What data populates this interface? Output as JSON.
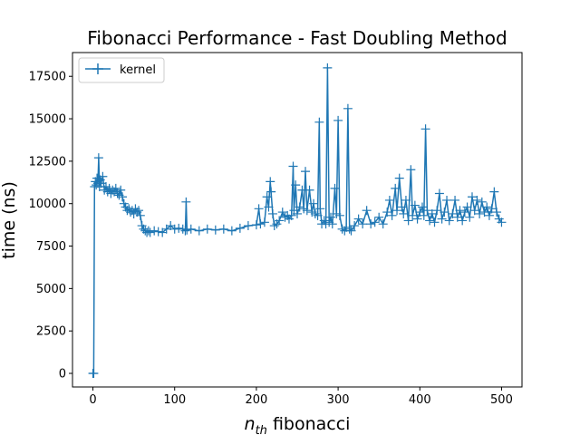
{
  "chart_data": {
    "type": "line",
    "title": "Fibonacci Performance - Fast Doubling Method",
    "xlabel_main": "n",
    "xlabel_sub": "th",
    "xlabel_rest": " fibonacci",
    "ylabel": "time (ns)",
    "xlim": [
      -25,
      525
    ],
    "ylim": [
      -800,
      18900
    ],
    "xticks": [
      0,
      100,
      200,
      300,
      400,
      500
    ],
    "yticks": [
      0,
      2500,
      5000,
      7500,
      10000,
      12500,
      15000,
      17500
    ],
    "legend_position": "top-left",
    "grid": false,
    "series": [
      {
        "name": "kernel",
        "color": "#1f77b4",
        "marker": "plus",
        "points": [
          [
            0,
            0
          ],
          [
            1,
            0
          ],
          [
            2,
            11000
          ],
          [
            3,
            11300
          ],
          [
            4,
            11100
          ],
          [
            5,
            11500
          ],
          [
            6,
            11200
          ],
          [
            7,
            12700
          ],
          [
            8,
            11000
          ],
          [
            9,
            11400
          ],
          [
            10,
            11200
          ],
          [
            12,
            11600
          ],
          [
            14,
            10800
          ],
          [
            16,
            11000
          ],
          [
            18,
            10700
          ],
          [
            20,
            10900
          ],
          [
            22,
            10600
          ],
          [
            24,
            10800
          ],
          [
            26,
            10700
          ],
          [
            28,
            10900
          ],
          [
            30,
            10600
          ],
          [
            32,
            10500
          ],
          [
            34,
            10800
          ],
          [
            36,
            10400
          ],
          [
            38,
            10000
          ],
          [
            40,
            9800
          ],
          [
            42,
            9600
          ],
          [
            44,
            9700
          ],
          [
            46,
            9500
          ],
          [
            48,
            9600
          ],
          [
            50,
            9400
          ],
          [
            52,
            9700
          ],
          [
            54,
            9500
          ],
          [
            56,
            9600
          ],
          [
            58,
            9300
          ],
          [
            60,
            8700
          ],
          [
            62,
            8500
          ],
          [
            64,
            8400
          ],
          [
            66,
            8300
          ],
          [
            68,
            8400
          ],
          [
            70,
            8300
          ],
          [
            75,
            8400
          ],
          [
            80,
            8350
          ],
          [
            85,
            8300
          ],
          [
            90,
            8500
          ],
          [
            95,
            8700
          ],
          [
            100,
            8500
          ],
          [
            105,
            8550
          ],
          [
            110,
            8500
          ],
          [
            113,
            8400
          ],
          [
            114,
            10100
          ],
          [
            115,
            8450
          ],
          [
            120,
            8500
          ],
          [
            130,
            8400
          ],
          [
            140,
            8500
          ],
          [
            150,
            8450
          ],
          [
            160,
            8500
          ],
          [
            170,
            8400
          ],
          [
            180,
            8550
          ],
          [
            190,
            8700
          ],
          [
            200,
            8750
          ],
          [
            203,
            9700
          ],
          [
            205,
            8800
          ],
          [
            210,
            8900
          ],
          [
            213,
            10400
          ],
          [
            215,
            9800
          ],
          [
            217,
            11300
          ],
          [
            218,
            10700
          ],
          [
            220,
            9400
          ],
          [
            222,
            8700
          ],
          [
            225,
            8800
          ],
          [
            228,
            9000
          ],
          [
            232,
            9500
          ],
          [
            235,
            9200
          ],
          [
            238,
            9300
          ],
          [
            240,
            9100
          ],
          [
            243,
            9300
          ],
          [
            245,
            12200
          ],
          [
            246,
            9600
          ],
          [
            248,
            11100
          ],
          [
            250,
            9400
          ],
          [
            253,
            9800
          ],
          [
            256,
            10800
          ],
          [
            258,
            9700
          ],
          [
            260,
            11900
          ],
          [
            262,
            9600
          ],
          [
            265,
            10800
          ],
          [
            268,
            9500
          ],
          [
            270,
            10000
          ],
          [
            272,
            9400
          ],
          [
            275,
            9300
          ],
          [
            277,
            14800
          ],
          [
            278,
            9700
          ],
          [
            280,
            8800
          ],
          [
            283,
            9000
          ],
          [
            285,
            8800
          ],
          [
            287,
            18000
          ],
          [
            289,
            8900
          ],
          [
            291,
            9200
          ],
          [
            293,
            8800
          ],
          [
            296,
            10900
          ],
          [
            298,
            9400
          ],
          [
            300,
            14900
          ],
          [
            302,
            9300
          ],
          [
            305,
            8500
          ],
          [
            308,
            8400
          ],
          [
            310,
            8600
          ],
          [
            312,
            15600
          ],
          [
            314,
            8500
          ],
          [
            316,
            8400
          ],
          [
            320,
            8700
          ],
          [
            325,
            9100
          ],
          [
            330,
            8800
          ],
          [
            335,
            9600
          ],
          [
            340,
            8800
          ],
          [
            345,
            8900
          ],
          [
            350,
            9200
          ],
          [
            355,
            8800
          ],
          [
            360,
            9500
          ],
          [
            363,
            10200
          ],
          [
            366,
            9300
          ],
          [
            370,
            10900
          ],
          [
            372,
            9600
          ],
          [
            375,
            11500
          ],
          [
            378,
            9800
          ],
          [
            380,
            9400
          ],
          [
            383,
            10200
          ],
          [
            386,
            9000
          ],
          [
            389,
            12000
          ],
          [
            391,
            9300
          ],
          [
            394,
            9900
          ],
          [
            397,
            9100
          ],
          [
            400,
            9500
          ],
          [
            403,
            9800
          ],
          [
            405,
            9300
          ],
          [
            407,
            14400
          ],
          [
            409,
            9600
          ],
          [
            412,
            9000
          ],
          [
            415,
            9400
          ],
          [
            418,
            8900
          ],
          [
            421,
            9600
          ],
          [
            424,
            10600
          ],
          [
            427,
            9100
          ],
          [
            430,
            9500
          ],
          [
            433,
            10200
          ],
          [
            436,
            9000
          ],
          [
            440,
            9400
          ],
          [
            443,
            10200
          ],
          [
            446,
            9200
          ],
          [
            449,
            9600
          ],
          [
            452,
            9000
          ],
          [
            455,
            9500
          ],
          [
            458,
            9800
          ],
          [
            461,
            9200
          ],
          [
            464,
            10400
          ],
          [
            467,
            9600
          ],
          [
            470,
            10200
          ],
          [
            473,
            9400
          ],
          [
            476,
            10100
          ],
          [
            479,
            9500
          ],
          [
            482,
            9800
          ],
          [
            485,
            9300
          ],
          [
            488,
            9700
          ],
          [
            491,
            10700
          ],
          [
            494,
            9500
          ],
          [
            497,
            9100
          ],
          [
            500,
            8900
          ]
        ]
      }
    ]
  }
}
